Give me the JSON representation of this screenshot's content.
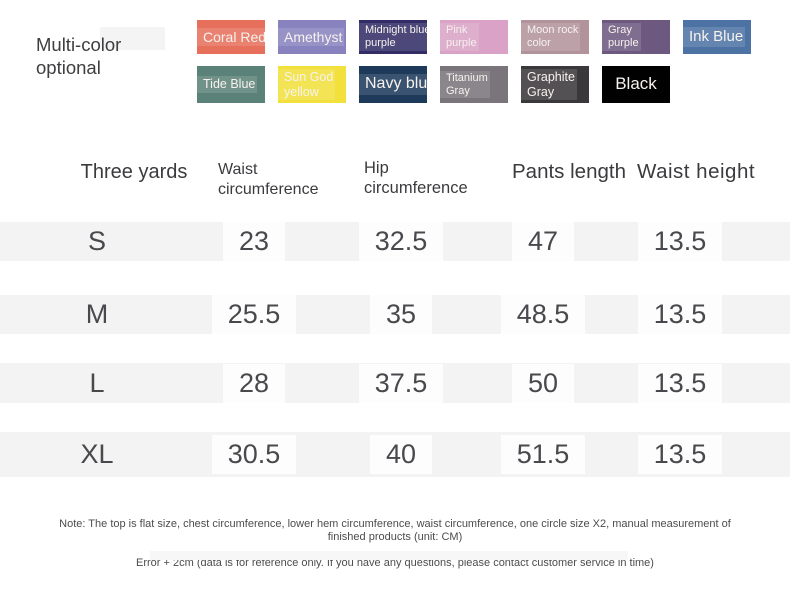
{
  "header": {
    "title": "Multi-color optional"
  },
  "colors": {
    "swatches": [
      {
        "name": "coral-red",
        "label": "Coral Red",
        "hex": "#e7705c"
      },
      {
        "name": "amethyst",
        "label": "Amethyst",
        "hex": "#8883bf"
      },
      {
        "name": "midnight-blue-purple",
        "label": "Midnight blue\npurple",
        "hex": "#322d66"
      },
      {
        "name": "pink-purple",
        "label": "Pink\npurple",
        "hex": "#d9a2c6"
      },
      {
        "name": "moon-rock-color",
        "label": "Moon rock\ncolor",
        "hex": "#b2939c"
      },
      {
        "name": "gray-purple",
        "label": "Gray\npurple",
        "hex": "#6d597f"
      },
      {
        "name": "ink-blue",
        "label": "Ink Blue",
        "hex": "#4c73a4"
      },
      {
        "name": "tide-blue",
        "label": "Tide Blue",
        "hex": "#5b8278"
      },
      {
        "name": "sun-god-yellow",
        "label": "Sun God\nyellow",
        "hex": "#f2e03c"
      },
      {
        "name": "navy-blue",
        "label": "Navy blue",
        "hex": "#1d3a5b"
      },
      {
        "name": "titanium-gray",
        "label": "Titanium\nGray",
        "hex": "#7a757b"
      },
      {
        "name": "graphite-gray",
        "label": "Graphite\nGray",
        "hex": "#3b383c"
      },
      {
        "name": "black",
        "label": "Black",
        "hex": "#010101"
      }
    ]
  },
  "table": {
    "headers": [
      "Three yards",
      "Waist circumference",
      "Hip circumference",
      "Pants length",
      "Waist height"
    ],
    "rows": [
      {
        "cells": [
          "S",
          "23",
          "32.5",
          "47",
          "13.5"
        ]
      },
      {
        "cells": [
          "M",
          "25.5",
          "35",
          "48.5",
          "13.5"
        ]
      },
      {
        "cells": [
          "L",
          "28",
          "37.5",
          "50",
          "13.5"
        ]
      },
      {
        "cells": [
          "XL",
          "30.5",
          "40",
          "51.5",
          "13.5"
        ]
      }
    ],
    "unit": "CM"
  },
  "note": {
    "line1": "Note: The top is flat size, chest circumference, lower hem circumference, waist circumference, one circle size X2, manual measurement of\nfinished products (unit: CM)",
    "line2": "Error + 2cm (data is for reference only. If you have any questions, please contact customer service in time)"
  },
  "theme": {
    "stripe_bg": "#f3f3f3",
    "header_text": "#3b3b3e",
    "value_text": "#49494d",
    "note_text": "#4c4c4c"
  }
}
